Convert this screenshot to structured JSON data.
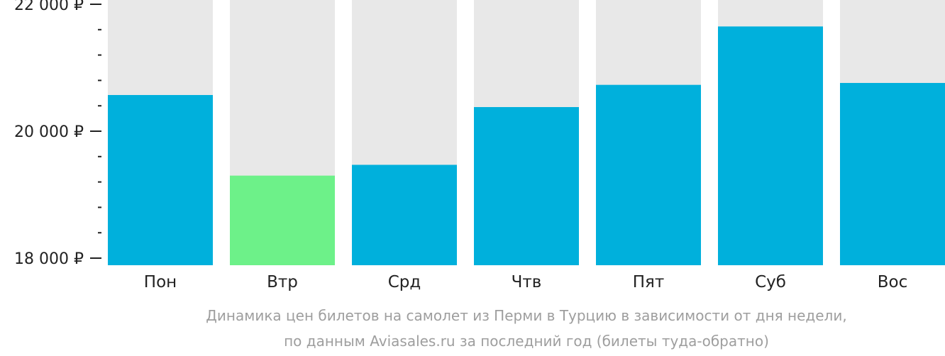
{
  "chart_data": {
    "type": "bar",
    "categories": [
      "Пон",
      "Втр",
      "Срд",
      "Чтв",
      "Пят",
      "Суб",
      "Вос"
    ],
    "values": [
      20570,
      19300,
      19470,
      20380,
      20730,
      21650,
      20760
    ],
    "highlight_index": 1,
    "ylim": [
      18000,
      22000
    ],
    "y_ticks": [
      {
        "value": 18000,
        "label": "18 000 ₽"
      },
      {
        "value": 20000,
        "label": "20 000 ₽"
      },
      {
        "value": 22000,
        "label": "22 000 ₽"
      }
    ],
    "y_minor_step": 400,
    "grid": false,
    "colors": {
      "bar": "#00b0dc",
      "bar_highlight": "#6df189",
      "bar_background": "#e8e8e8",
      "axis_text": "#222222",
      "tick": "#222222",
      "caption": "#9e9e9e"
    },
    "caption": [
      "Динамика цен билетов на самолет из Перми в Турцию в зависимости от дня недели,",
      "по данным Aviasales.ru за последний год (билеты туда-обратно)"
    ]
  }
}
